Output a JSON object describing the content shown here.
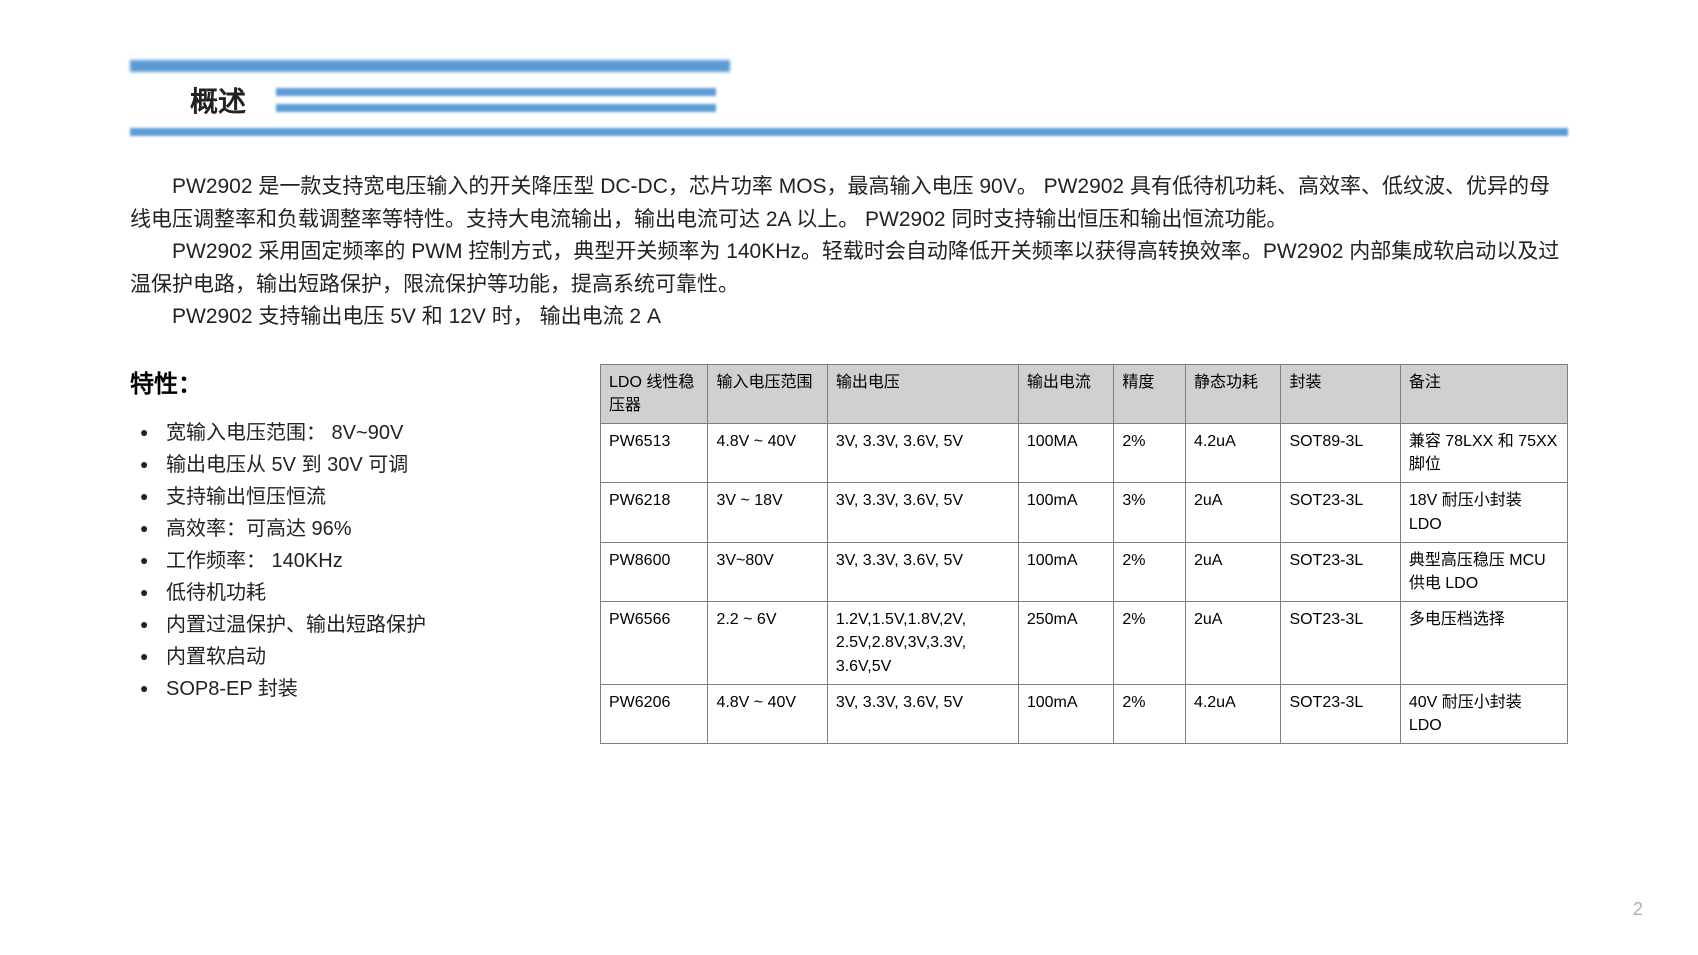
{
  "section_title": "概述",
  "paragraphs": [
    "PW2902 是一款支持宽电压输入的开关降压型 DC-DC，芯片功率 MOS，最高输入电压 90V。 PW2902 具有低待机功耗、高效率、低纹波、优异的母线电压调整率和负载调整率等特性。支持大电流输出，输出电流可达 2A 以上。 PW2902 同时支持输出恒压和输出恒流功能。",
    "PW2902 采用固定频率的 PWM 控制方式，典型开关频率为 140KHz。轻载时会自动降低开关频率以获得高转换效率。PW2902 内部集成软启动以及过温保护电路，输出短路保护，限流保护等功能，提高系统可靠性。",
    "PW2902 支持输出电压 5V 和 12V 时，  输出电流 2 A"
  ],
  "features_title": "特性：",
  "features": [
    "宽输入电压范围：  8V~90V",
    "输出电压从 5V 到 30V 可调",
    "支持输出恒压恒流",
    "高效率：可高达 96%",
    "工作频率： 140KHz",
    "低待机功耗",
    "内置过温保护、输出短路保护",
    "内置软启动",
    "SOP8-EP 封装"
  ],
  "table": {
    "headers": [
      "LDO 线性稳压器",
      "输入电压范围",
      "输出电压",
      "输出电流",
      "精度",
      "静态功耗",
      "封装",
      "备注"
    ],
    "rows": [
      [
        "PW6513",
        "4.8V ~ 40V",
        "3V, 3.3V, 3.6V, 5V",
        "100MA",
        "2%",
        "4.2uA",
        "SOT89-3L",
        "兼容 78LXX 和 75XX 脚位"
      ],
      [
        "PW6218",
        "3V ~ 18V",
        "3V, 3.3V, 3.6V, 5V",
        "100mA",
        "3%",
        "2uA",
        "SOT23-3L",
        "18V 耐压小封装 LDO"
      ],
      [
        "PW8600",
        "3V~80V",
        "3V, 3.3V, 3.6V, 5V",
        "100mA",
        "2%",
        "2uA",
        "SOT23-3L",
        "典型高压稳压 MCU 供电 LDO"
      ],
      [
        "PW6566",
        "2.2 ~ 6V",
        "1.2V,1.5V,1.8V,2V, 2.5V,2.8V,3V,3.3V, 3.6V,5V",
        "250mA",
        "2%",
        "2uA",
        "SOT23-3L",
        "多电压档选择"
      ],
      [
        "PW6206",
        "4.8V ~ 40V",
        "3V, 3.3V, 3.6V, 5V",
        "100mA",
        "2%",
        "4.2uA",
        "SOT23-3L",
        "40V 耐压小封装 LDO"
      ]
    ],
    "col_widths": [
      "90px",
      "100px",
      "160px",
      "80px",
      "60px",
      "80px",
      "100px",
      "140px"
    ]
  },
  "page_number": "2",
  "colors": {
    "bar": "#5b9bd5",
    "table_header_bg": "#d0d0d0",
    "border": "#808080",
    "text": "#222222",
    "bg": "#ffffff",
    "pagenum": "#b0b0b0"
  }
}
